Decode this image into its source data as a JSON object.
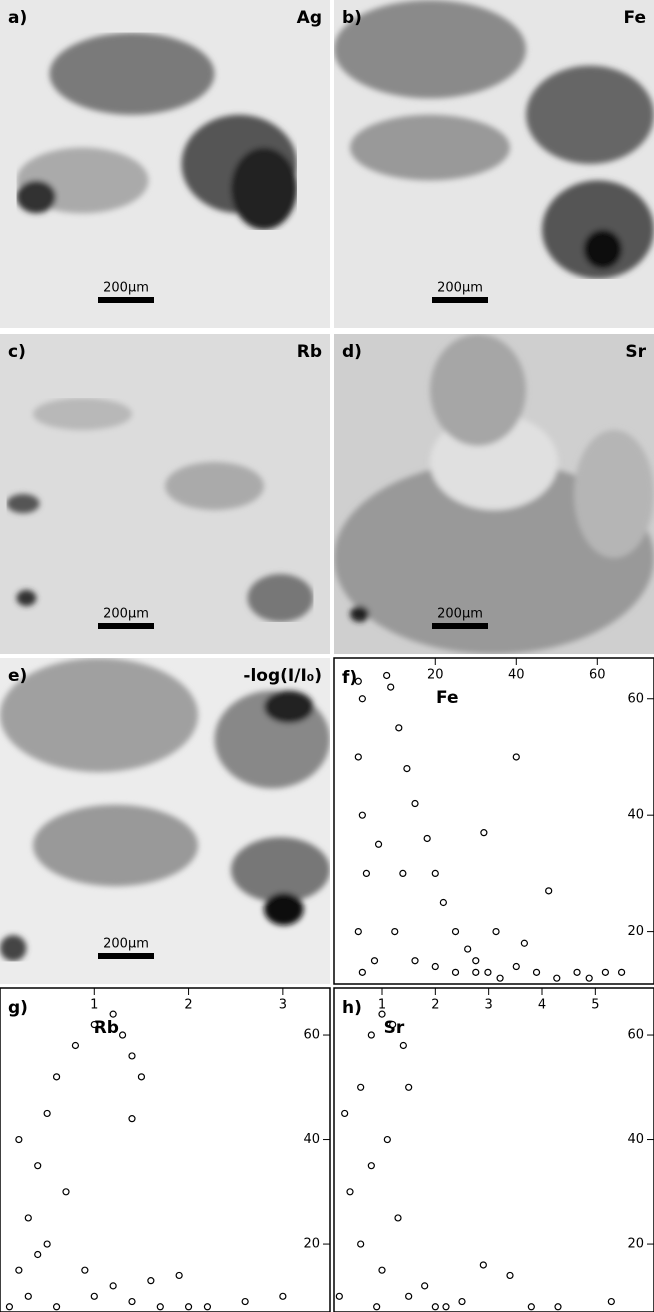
{
  "panels": [
    {
      "label": "a)",
      "element": "Ag",
      "scale_label": "200µm"
    },
    {
      "label": "b)",
      "element": "Fe",
      "scale_label": "200µm"
    },
    {
      "label": "c)",
      "element": "Rb",
      "scale_label": "200µm"
    },
    {
      "label": "d)",
      "element": "Sr",
      "scale_label": "200µm"
    },
    {
      "label": "e)",
      "element": "-log(I/I₀)",
      "scale_label": "200µm"
    }
  ],
  "chart_data": [
    {
      "type": "scatter",
      "label": "f)",
      "title": "Fe",
      "color": "#000000",
      "x": [
        1,
        2,
        1,
        2,
        3,
        1,
        2,
        8,
        9,
        11,
        13,
        15,
        18,
        20,
        22,
        25,
        28,
        30,
        33,
        36,
        40,
        45,
        50,
        55,
        58,
        62,
        66,
        5,
        10,
        15,
        20,
        25,
        30,
        6,
        12,
        40,
        32,
        48,
        35,
        42
      ],
      "y": [
        63,
        60,
        50,
        40,
        30,
        20,
        13,
        64,
        62,
        55,
        48,
        42,
        36,
        30,
        25,
        20,
        17,
        15,
        13,
        12,
        14,
        13,
        12,
        13,
        12,
        13,
        13,
        15,
        20,
        15,
        14,
        13,
        13,
        35,
        30,
        50,
        37,
        27,
        20,
        18
      ],
      "xlim": [
        -5,
        74
      ],
      "ylim": [
        11,
        67
      ],
      "xticks": [
        20,
        40,
        60
      ],
      "yticks": [
        20,
        40,
        60
      ]
    },
    {
      "type": "scatter",
      "label": "g)",
      "title": "Rb",
      "color": "#000000",
      "x": [
        0.1,
        0.2,
        0.3,
        0.4,
        0.5,
        0.6,
        0.8,
        1.0,
        1.2,
        1.3,
        1.4,
        1.5,
        0.3,
        0.5,
        0.7,
        0.9,
        0.6,
        1.0,
        1.2,
        1.4,
        1.6,
        1.9,
        1.7,
        2.0,
        2.2,
        2.6,
        3.0,
        1.4,
        0.4,
        0.2
      ],
      "y": [
        8,
        15,
        25,
        35,
        45,
        52,
        58,
        62,
        64,
        60,
        56,
        52,
        10,
        20,
        30,
        15,
        8,
        10,
        12,
        9,
        13,
        14,
        8,
        8,
        8,
        9,
        10,
        44,
        18,
        40
      ],
      "xlim": [
        0,
        3.5
      ],
      "ylim": [
        7,
        69
      ],
      "xticks": [
        1,
        2,
        3
      ],
      "yticks": [
        20,
        40,
        60
      ]
    },
    {
      "type": "scatter",
      "label": "h)",
      "title": "Sr",
      "color": "#000000",
      "x": [
        0.2,
        0.4,
        0.6,
        0.8,
        1.0,
        1.2,
        1.4,
        1.5,
        0.6,
        0.8,
        1.0,
        1.5,
        2.0,
        2.5,
        2.9,
        3.4,
        3.8,
        4.3,
        5.3,
        0.3,
        0.9,
        1.3,
        1.8,
        2.2,
        1.1
      ],
      "y": [
        10,
        30,
        50,
        60,
        64,
        62,
        58,
        50,
        20,
        35,
        15,
        10,
        8,
        9,
        16,
        14,
        8,
        8,
        9,
        45,
        8,
        25,
        12,
        8,
        40
      ],
      "xlim": [
        0.1,
        6.1
      ],
      "ylim": [
        7,
        69
      ],
      "xticks": [
        1,
        2,
        3,
        4,
        5
      ],
      "yticks": [
        20,
        40,
        60
      ]
    }
  ]
}
